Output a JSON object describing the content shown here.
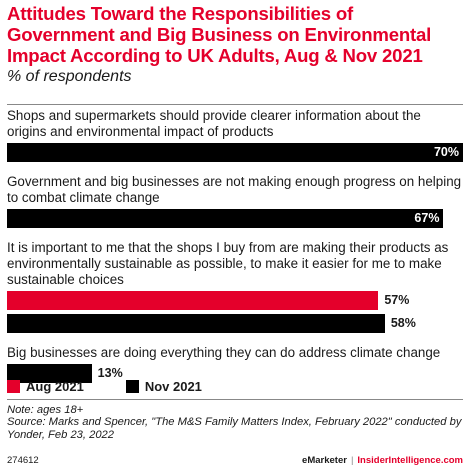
{
  "header": {
    "title": "Attitudes Toward the Responsibilities of Government and Big Business on Environmental Impact According to UK Adults, Aug & Nov 2021",
    "subtitle": "% of respondents"
  },
  "colors": {
    "aug": "#e4002b",
    "nov": "#000000"
  },
  "legend": [
    {
      "label": "Aug 2021",
      "color": "#e4002b"
    },
    {
      "label": "Nov 2021",
      "color": "#000000"
    }
  ],
  "chart_data": {
    "type": "bar",
    "orientation": "horizontal",
    "xlim": [
      0,
      70
    ],
    "grid": false,
    "legend_position": "bottom",
    "categories": [
      "Shops and supermarkets should provide clearer information about the origins and environmental impact of products",
      "Government and big businesses are not making enough progress on helping to combat climate change",
      "It is important to me that the shops I buy from are making their products as environmentally sustainable as possible, to make it easier for me to make sustainable choices",
      "Big businesses are doing everything they can do address climate change"
    ],
    "series": [
      {
        "name": "Aug 2021",
        "values": [
          null,
          null,
          57,
          null
        ],
        "labels": [
          "",
          "",
          "57%",
          ""
        ]
      },
      {
        "name": "Nov 2021",
        "values": [
          70,
          67,
          58,
          13
        ],
        "labels": [
          "70%",
          "67%",
          "58%",
          "13%"
        ]
      }
    ]
  },
  "notes": {
    "note": "Note: ages 18+",
    "source": "Source: Marks and Spencer, \"The M&S Family Matters Index, February 2022\" conducted by Yonder, Feb 23, 2022"
  },
  "footer": {
    "id": "274612",
    "brand_left": "eMarketer",
    "separator": "|",
    "brand_right": "InsiderIntelligence.com"
  }
}
